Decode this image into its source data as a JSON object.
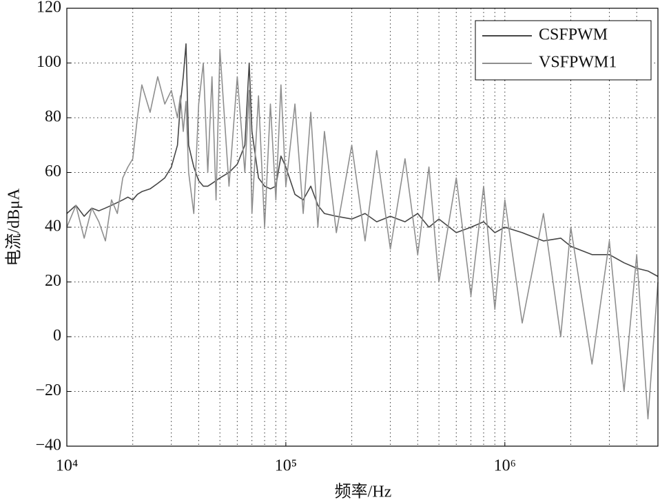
{
  "chart_data": {
    "type": "line",
    "xlabel": "频率/Hz",
    "ylabel": "电流/dBμA",
    "log_x": true,
    "grid": true,
    "legend": "upper right",
    "xlim": [
      10000,
      5000000
    ],
    "xticks": [
      {
        "value": 10000,
        "label": "10⁴"
      },
      {
        "value": 100000,
        "label": "10⁵"
      },
      {
        "value": 1000000,
        "label": "10⁶"
      }
    ],
    "xgrid_minor": [
      20000,
      30000,
      40000,
      50000,
      60000,
      70000,
      80000,
      90000,
      200000,
      300000,
      400000,
      500000,
      600000,
      700000,
      800000,
      900000,
      2000000,
      3000000,
      4000000
    ],
    "ylim": [
      -40,
      120
    ],
    "yticks": [
      {
        "value": -40,
        "label": "−40"
      },
      {
        "value": -20,
        "label": "−20"
      },
      0,
      20,
      40,
      60,
      80,
      100,
      120
    ],
    "x": [
      10000,
      11000,
      12000,
      13000,
      14000,
      15000,
      16000,
      17000,
      18000,
      19000,
      20000,
      21000,
      22000,
      24000,
      26000,
      28000,
      30000,
      32000,
      33000,
      34000,
      35000,
      36000,
      38000,
      40000,
      42000,
      44000,
      46000,
      48000,
      50000,
      55000,
      60000,
      65000,
      68000,
      70000,
      75000,
      80000,
      85000,
      90000,
      95000,
      100000,
      110000,
      120000,
      130000,
      140000,
      150000,
      170000,
      200000,
      230000,
      260000,
      300000,
      350000,
      400000,
      450000,
      500000,
      600000,
      700000,
      800000,
      900000,
      1000000,
      1200000,
      1500000,
      1800000,
      2000000,
      2500000,
      3000000,
      3500000,
      4000000,
      4500000,
      5000000
    ],
    "series": [
      {
        "name": "CSFPWM",
        "color": "#454545",
        "values": [
          45,
          48,
          44,
          47,
          46,
          47,
          48,
          49,
          50,
          51,
          50,
          52,
          53,
          54,
          56,
          58,
          62,
          70,
          85,
          95,
          107,
          70,
          62,
          57,
          55,
          55,
          56,
          57,
          58,
          60,
          63,
          70,
          100,
          75,
          58,
          55,
          54,
          55,
          66,
          62,
          52,
          50,
          55,
          48,
          45,
          44,
          43,
          45,
          42,
          44,
          42,
          45,
          40,
          43,
          38,
          40,
          42,
          38,
          40,
          38,
          35,
          36,
          33,
          30,
          30,
          27,
          25,
          24,
          22
        ]
      },
      {
        "name": "VSFPWM1",
        "color": "#8e8e8e",
        "values": [
          40,
          48,
          36,
          47,
          42,
          35,
          50,
          45,
          58,
          62,
          65,
          80,
          92,
          82,
          95,
          85,
          90,
          80,
          88,
          75,
          86,
          60,
          45,
          85,
          100,
          60,
          95,
          50,
          105,
          55,
          95,
          60,
          90,
          45,
          88,
          40,
          85,
          50,
          92,
          55,
          85,
          45,
          82,
          40,
          75,
          38,
          70,
          35,
          68,
          32,
          65,
          30,
          62,
          20,
          58,
          15,
          55,
          10,
          50,
          5,
          45,
          0,
          40,
          -10,
          35,
          -20,
          30,
          -30,
          20
        ]
      }
    ]
  }
}
